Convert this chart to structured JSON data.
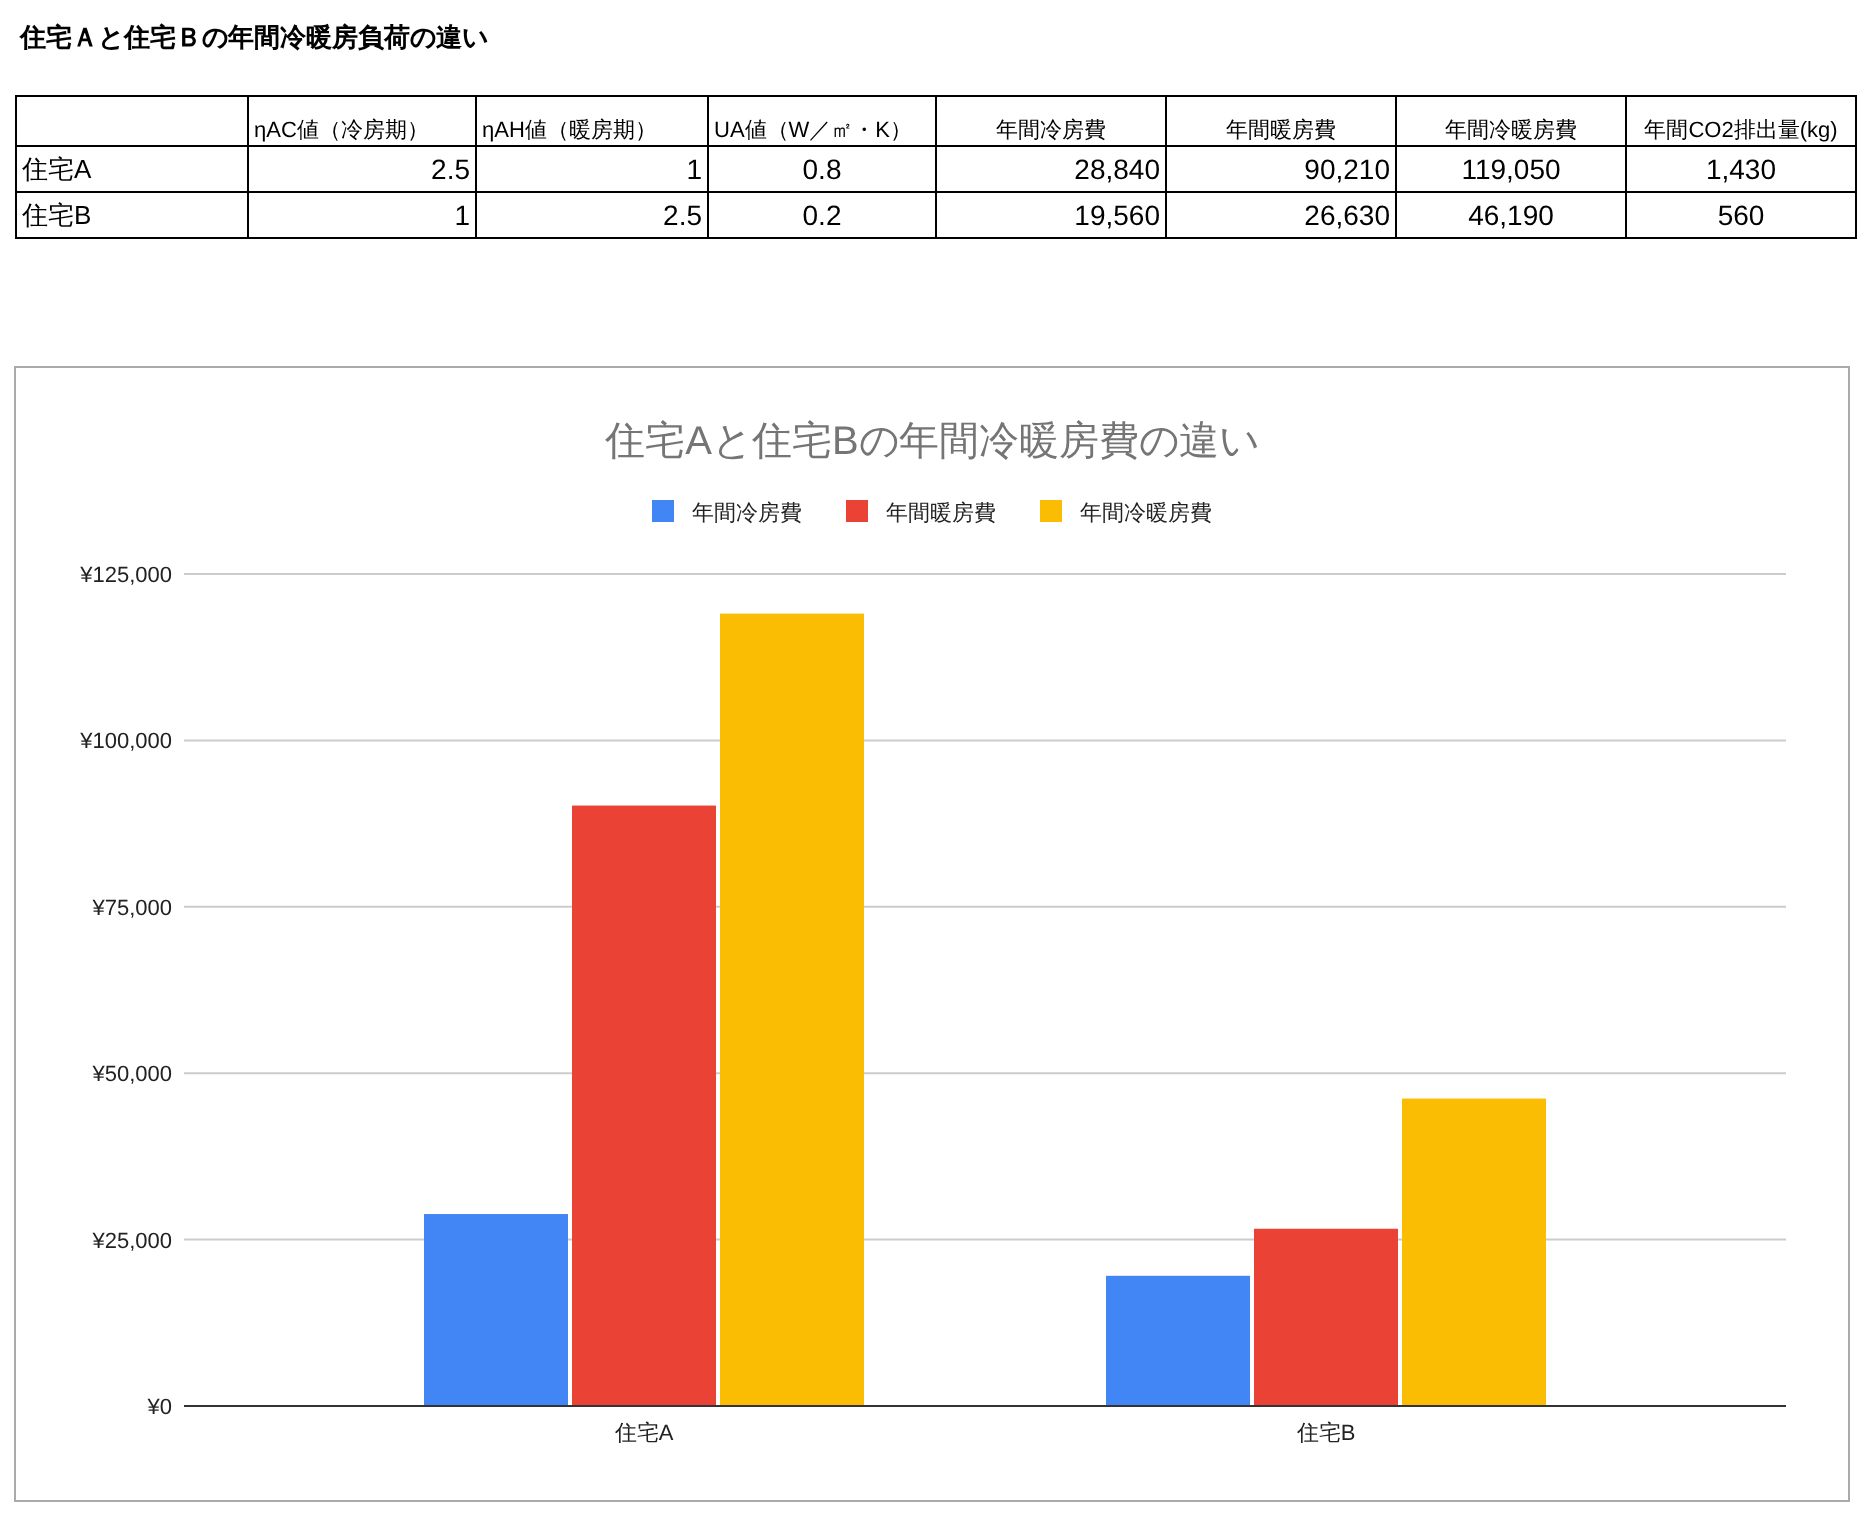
{
  "chart_data": [
    {
      "type": "other",
      "title": "住宅Ａと住宅Ｂの年間冷暖房負荷の違い",
      "categories": [
        null,
        "ηAC値（冷房期）",
        "ηAH値（暖房期）",
        "UA値（W／㎡・K）",
        "年間冷房費",
        "年間暖房費",
        "年間冷暖房費",
        "年間CO2排出量(kg)"
      ],
      "y_categories": [
        "住宅A",
        "住宅B"
      ],
      "cell_labels": [
        [
          "2.5",
          "1",
          "0.8",
          "28,840",
          "90,210",
          "119,050",
          "1,430"
        ],
        [
          "1",
          "2.5",
          "0.2",
          "19,560",
          "26,630",
          "46,190",
          "560"
        ]
      ]
    },
    {
      "type": "bar",
      "title": "住宅Aと住宅Bの年間冷暖房費の違い",
      "categories": [
        "住宅A",
        "住宅B"
      ],
      "series": [
        {
          "name": "年間冷房費",
          "color": "#4285f4",
          "values": [
            28840,
            19560
          ]
        },
        {
          "name": "年間暖房費",
          "color": "#ea4335",
          "values": [
            90210,
            26630
          ]
        },
        {
          "name": "年間冷暖房費",
          "color": "#fbbc04",
          "values": [
            119050,
            46190
          ]
        }
      ],
      "ylim": [
        0,
        125000
      ],
      "yticks": [
        {
          "value": 0,
          "label": "¥0"
        },
        {
          "value": 25000,
          "label": "¥25,000"
        },
        {
          "value": 50000,
          "label": "¥50,000"
        },
        {
          "value": 75000,
          "label": "¥75,000"
        },
        {
          "value": 100000,
          "label": "¥100,000"
        },
        {
          "value": 125000,
          "label": "¥125,000"
        }
      ],
      "grid": "y",
      "legend": "top"
    }
  ]
}
